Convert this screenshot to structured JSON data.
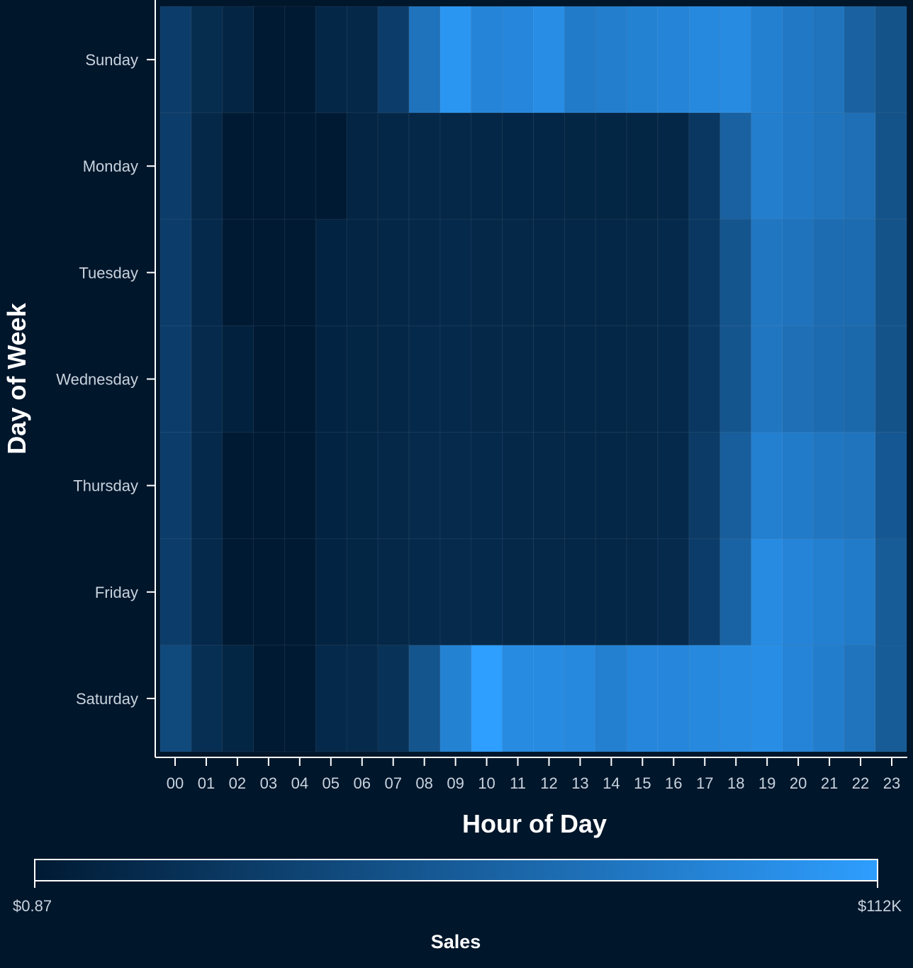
{
  "chart_data": {
    "type": "heatmap",
    "title": "",
    "xlabel": "Hour of Day",
    "ylabel": "Day of Week",
    "x_categories": [
      "00",
      "01",
      "02",
      "03",
      "04",
      "05",
      "06",
      "07",
      "08",
      "09",
      "10",
      "11",
      "12",
      "13",
      "14",
      "15",
      "16",
      "17",
      "18",
      "19",
      "20",
      "21",
      "22",
      "23"
    ],
    "y_categories": [
      "Sunday",
      "Monday",
      "Tuesday",
      "Wednesday",
      "Thursday",
      "Friday",
      "Saturday"
    ],
    "values": [
      [
        30000,
        15000,
        9000,
        1,
        1,
        11000,
        12000,
        30000,
        75000,
        105000,
        90000,
        92000,
        98000,
        82000,
        85000,
        88000,
        90000,
        94000,
        96000,
        86000,
        80000,
        76000,
        60000,
        48000
      ],
      [
        30000,
        12000,
        1,
        1,
        1,
        1,
        9000,
        11000,
        12000,
        12000,
        11000,
        10500,
        10500,
        10000,
        10000,
        10000,
        11000,
        25000,
        60000,
        85000,
        80000,
        76000,
        72000,
        48000
      ],
      [
        30000,
        13000,
        1,
        1,
        1,
        8000,
        9000,
        11000,
        12000,
        13000,
        12000,
        11500,
        11000,
        11000,
        11000,
        11500,
        12500,
        25000,
        50000,
        78000,
        75000,
        70000,
        68000,
        48000
      ],
      [
        30000,
        14000,
        6000,
        1,
        1,
        8000,
        10000,
        11000,
        13000,
        13000,
        12000,
        11500,
        11000,
        11000,
        11000,
        11500,
        12500,
        25000,
        50000,
        78000,
        72000,
        68000,
        66000,
        48000
      ],
      [
        30000,
        13000,
        1,
        1,
        1,
        8000,
        10000,
        12000,
        14000,
        14000,
        13000,
        12000,
        11500,
        11000,
        11000,
        11500,
        13000,
        28000,
        58000,
        86000,
        82000,
        78000,
        76000,
        52000
      ],
      [
        30000,
        13000,
        1,
        1,
        1,
        8000,
        10000,
        12000,
        13000,
        14000,
        13000,
        12000,
        11500,
        11000,
        11000,
        12000,
        14000,
        30000,
        62000,
        96000,
        90000,
        86000,
        82000,
        55000
      ],
      [
        40000,
        18000,
        10000,
        1,
        1,
        13000,
        14000,
        20000,
        50000,
        88000,
        112000,
        96000,
        96000,
        94000,
        86000,
        92000,
        92000,
        94000,
        96000,
        98000,
        90000,
        84000,
        76000,
        55000
      ]
    ],
    "zlabel": "Sales",
    "zmin_label": "$0.87",
    "zmax_label": "$112K",
    "zrange": [
      0.87,
      112000
    ],
    "colors": {
      "low": "#001a33",
      "high": "#2e9eff",
      "background": "#00162b",
      "axis": "#ffffff"
    }
  }
}
